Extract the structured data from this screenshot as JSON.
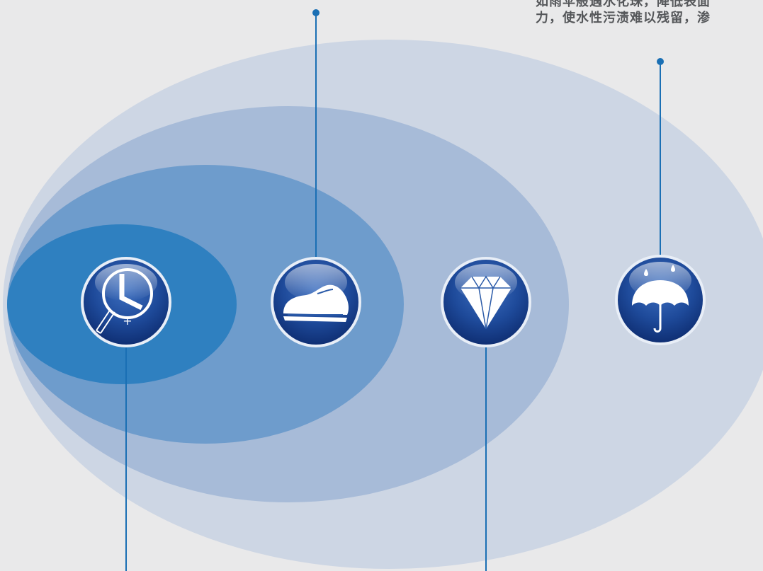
{
  "caption": {
    "lines": [
      "如雨伞般遇水化珠，降低表面",
      "力，使水性污渍难以残留，渗"
    ]
  },
  "features": [
    {
      "icon": "magnifier-clock-icon"
    },
    {
      "icon": "shoe-icon"
    },
    {
      "icon": "diamond-icon"
    },
    {
      "icon": "umbrella-rain-icon"
    }
  ],
  "colors": {
    "background": "#e9e9ea",
    "ellipse_outer": "#cdd6e4",
    "ellipse_2": "#a7bbd8",
    "ellipse_3": "#6e9ccc",
    "ellipse_inner": "#2f80c0",
    "icon_blue": "#1d4c9c",
    "line": "#1a6fb4"
  }
}
